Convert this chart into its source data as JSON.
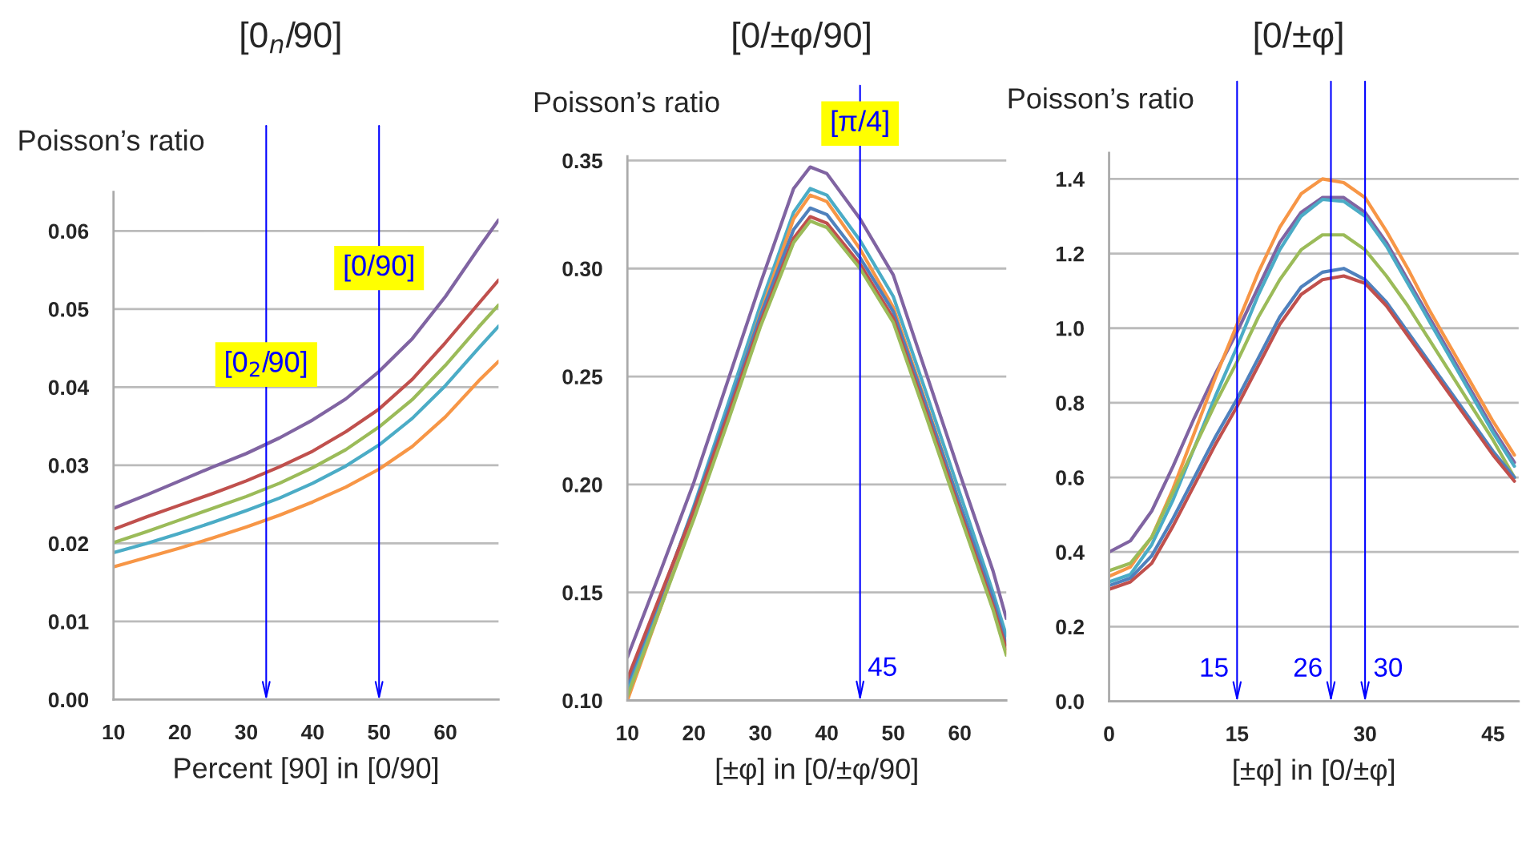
{
  "chart_data": [
    {
      "type": "line",
      "title": "[0$_{n}$/90]",
      "ylabel": "Poisson’s ratio",
      "xlabel": "Percent [90] in [0/90]",
      "grid": "y",
      "x": [
        10,
        15,
        20,
        25,
        30,
        35,
        40,
        45,
        50,
        55,
        60,
        65,
        68
      ],
      "series": [
        {
          "color": "#8064a2",
          "values": [
            0.0245,
            0.0262,
            0.028,
            0.0298,
            0.0315,
            0.0335,
            0.0358,
            0.0385,
            0.042,
            0.0462,
            0.0516,
            0.0578,
            0.0614
          ]
        },
        {
          "color": "#c0504d",
          "values": [
            0.0218,
            0.0234,
            0.0249,
            0.0264,
            0.028,
            0.0298,
            0.0318,
            0.0343,
            0.0372,
            0.041,
            0.0457,
            0.0507,
            0.0537
          ]
        },
        {
          "color": "#9bbb59",
          "values": [
            0.0201,
            0.0215,
            0.023,
            0.0245,
            0.026,
            0.0277,
            0.0297,
            0.032,
            0.0349,
            0.0384,
            0.0428,
            0.0477,
            0.0505
          ]
        },
        {
          "color": "#4bacc6",
          "values": [
            0.0188,
            0.02,
            0.0213,
            0.0227,
            0.0242,
            0.0258,
            0.0277,
            0.0299,
            0.0326,
            0.036,
            0.0402,
            0.045,
            0.0478
          ]
        },
        {
          "color": "#f79646",
          "values": [
            0.017,
            0.0182,
            0.0194,
            0.0207,
            0.0221,
            0.0236,
            0.0253,
            0.0272,
            0.0295,
            0.0324,
            0.0362,
            0.0408,
            0.0433
          ]
        }
      ],
      "xlim": [
        10,
        68
      ],
      "xticks": [
        10,
        20,
        30,
        40,
        50,
        60
      ],
      "ylim": [
        0,
        0.065
      ],
      "yticks": [
        {
          "value": 0,
          "label": "0.00"
        },
        {
          "value": 0.01,
          "label": "0.01"
        },
        {
          "value": 0.02,
          "label": "0.02"
        },
        {
          "value": 0.03,
          "label": "0.03"
        },
        {
          "value": 0.04,
          "label": "0.04"
        },
        {
          "value": 0.05,
          "label": "0.05"
        },
        {
          "value": 0.06,
          "label": "0.06"
        }
      ],
      "ref_lines": [
        {
          "axis": "x",
          "value": 33,
          "color": "#0000ff"
        },
        {
          "axis": "x",
          "value": 50,
          "color": "#0000ff"
        }
      ],
      "annotations": [
        "[0$_{2}$/90]",
        "[0/90]"
      ]
    },
    {
      "type": "line",
      "title": "[0/±φ/90]",
      "ylabel": "Poisson’s ratio",
      "xlabel": "[±φ] in [0/±φ/90]",
      "grid": "y",
      "x": [
        10,
        15,
        20,
        25,
        30,
        35,
        37.5,
        40,
        45,
        50,
        55,
        60,
        65,
        67
      ],
      "series": [
        {
          "color": "#8064a2",
          "values": [
            0.12,
            0.16,
            0.201,
            0.247,
            0.293,
            0.337,
            0.347,
            0.344,
            0.323,
            0.297,
            0.251,
            0.205,
            0.16,
            0.138
          ]
        },
        {
          "color": "#4bacc6",
          "values": [
            0.105,
            0.147,
            0.19,
            0.236,
            0.283,
            0.326,
            0.337,
            0.334,
            0.313,
            0.287,
            0.242,
            0.196,
            0.15,
            0.13
          ]
        },
        {
          "color": "#f79646",
          "values": [
            0.1,
            0.143,
            0.186,
            0.232,
            0.279,
            0.323,
            0.334,
            0.331,
            0.309,
            0.282,
            0.237,
            0.191,
            0.145,
            0.122
          ]
        },
        {
          "color": "#4f81bd",
          "values": [
            0.108,
            0.148,
            0.189,
            0.233,
            0.278,
            0.318,
            0.328,
            0.325,
            0.305,
            0.28,
            0.236,
            0.191,
            0.147,
            0.126
          ]
        },
        {
          "color": "#c0504d",
          "values": [
            0.11,
            0.149,
            0.188,
            0.231,
            0.275,
            0.314,
            0.324,
            0.321,
            0.302,
            0.277,
            0.233,
            0.188,
            0.144,
            0.124
          ]
        },
        {
          "color": "#9bbb59",
          "values": [
            0.102,
            0.143,
            0.184,
            0.228,
            0.273,
            0.312,
            0.322,
            0.319,
            0.3,
            0.275,
            0.231,
            0.186,
            0.142,
            0.121
          ]
        }
      ],
      "xlim": [
        10,
        67
      ],
      "xticks": [
        10,
        20,
        30,
        40,
        50,
        60
      ],
      "ylim": [
        0.1,
        0.352
      ],
      "yticks": [
        {
          "value": 0.1,
          "label": "0.10"
        },
        {
          "value": 0.15,
          "label": "0.15"
        },
        {
          "value": 0.2,
          "label": "0.20"
        },
        {
          "value": 0.25,
          "label": "0.25"
        },
        {
          "value": 0.3,
          "label": "0.30"
        },
        {
          "value": 0.35,
          "label": "0.35"
        }
      ],
      "ref_lines": [
        {
          "axis": "x",
          "value": 45,
          "label": "45",
          "color": "#0000ff"
        }
      ],
      "annotations": [
        "[π/4]"
      ]
    },
    {
      "type": "line",
      "title": "[0/±φ]",
      "ylabel": "Poisson’s ratio",
      "xlabel": "[±φ] in [0/±φ]",
      "grid": "y",
      "x": [
        0,
        2.5,
        5,
        7.5,
        10,
        12.5,
        15,
        17.5,
        20,
        22.5,
        25,
        27.5,
        30,
        32.5,
        35,
        37.5,
        40,
        42.5,
        45,
        47.5
      ],
      "series": [
        {
          "color": "#8064a2",
          "values": [
            0.4,
            0.43,
            0.51,
            0.63,
            0.76,
            0.88,
            0.99,
            1.11,
            1.23,
            1.31,
            1.35,
            1.35,
            1.31,
            1.23,
            1.13,
            1.03,
            0.93,
            0.83,
            0.73,
            0.64
          ]
        },
        {
          "color": "#f79646",
          "values": [
            0.335,
            0.36,
            0.44,
            0.57,
            0.72,
            0.87,
            1.01,
            1.15,
            1.27,
            1.36,
            1.4,
            1.39,
            1.35,
            1.26,
            1.16,
            1.05,
            0.95,
            0.85,
            0.75,
            0.66
          ]
        },
        {
          "color": "#4bacc6",
          "values": [
            0.32,
            0.34,
            0.42,
            0.54,
            0.68,
            0.82,
            0.95,
            1.09,
            1.21,
            1.3,
            1.345,
            1.34,
            1.3,
            1.22,
            1.12,
            1.02,
            0.92,
            0.82,
            0.72,
            0.63
          ]
        },
        {
          "color": "#9bbb59",
          "values": [
            0.35,
            0.37,
            0.44,
            0.56,
            0.68,
            0.8,
            0.91,
            1.03,
            1.13,
            1.21,
            1.25,
            1.25,
            1.21,
            1.14,
            1.06,
            0.97,
            0.88,
            0.79,
            0.7,
            0.6
          ]
        },
        {
          "color": "#4f81bd",
          "values": [
            0.31,
            0.33,
            0.39,
            0.49,
            0.6,
            0.71,
            0.81,
            0.92,
            1.03,
            1.11,
            1.15,
            1.16,
            1.13,
            1.07,
            0.99,
            0.91,
            0.83,
            0.75,
            0.67,
            0.6
          ]
        },
        {
          "color": "#c0504d",
          "values": [
            0.3,
            0.32,
            0.37,
            0.47,
            0.58,
            0.69,
            0.79,
            0.9,
            1.01,
            1.09,
            1.13,
            1.14,
            1.12,
            1.06,
            0.98,
            0.9,
            0.82,
            0.74,
            0.66,
            0.59
          ]
        }
      ],
      "xlim": [
        0,
        48
      ],
      "xticks": [
        0,
        15,
        30,
        45
      ],
      "ylim": [
        0,
        1.47
      ],
      "yticks": [
        {
          "value": 0,
          "label": "0.0"
        },
        {
          "value": 0.2,
          "label": "0.2"
        },
        {
          "value": 0.4,
          "label": "0.4"
        },
        {
          "value": 0.6,
          "label": "0.6"
        },
        {
          "value": 0.8,
          "label": "0.8"
        },
        {
          "value": 1.0,
          "label": "1.0"
        },
        {
          "value": 1.2,
          "label": "1.2"
        },
        {
          "value": 1.4,
          "label": "1.4"
        }
      ],
      "ref_lines": [
        {
          "axis": "x",
          "value": 15,
          "label": "15",
          "color": "#0000ff"
        },
        {
          "axis": "x",
          "value": 26,
          "label": "26",
          "color": "#0000ff"
        },
        {
          "axis": "x",
          "value": 30,
          "label": "30",
          "color": "#0000ff"
        }
      ]
    }
  ]
}
